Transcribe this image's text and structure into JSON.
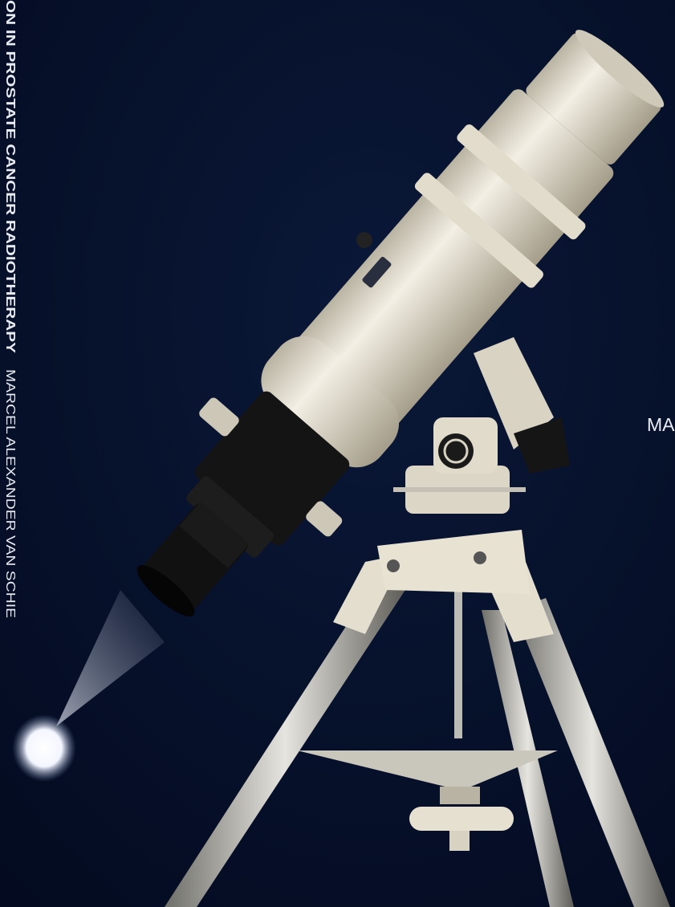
{
  "spine": {
    "title": "ON IN PROSTATE CANCER RADIOTHERAPY",
    "author": "MARCEL ALEXANDER VAN SCHIE"
  },
  "cover": {
    "partial_text": "MA"
  }
}
